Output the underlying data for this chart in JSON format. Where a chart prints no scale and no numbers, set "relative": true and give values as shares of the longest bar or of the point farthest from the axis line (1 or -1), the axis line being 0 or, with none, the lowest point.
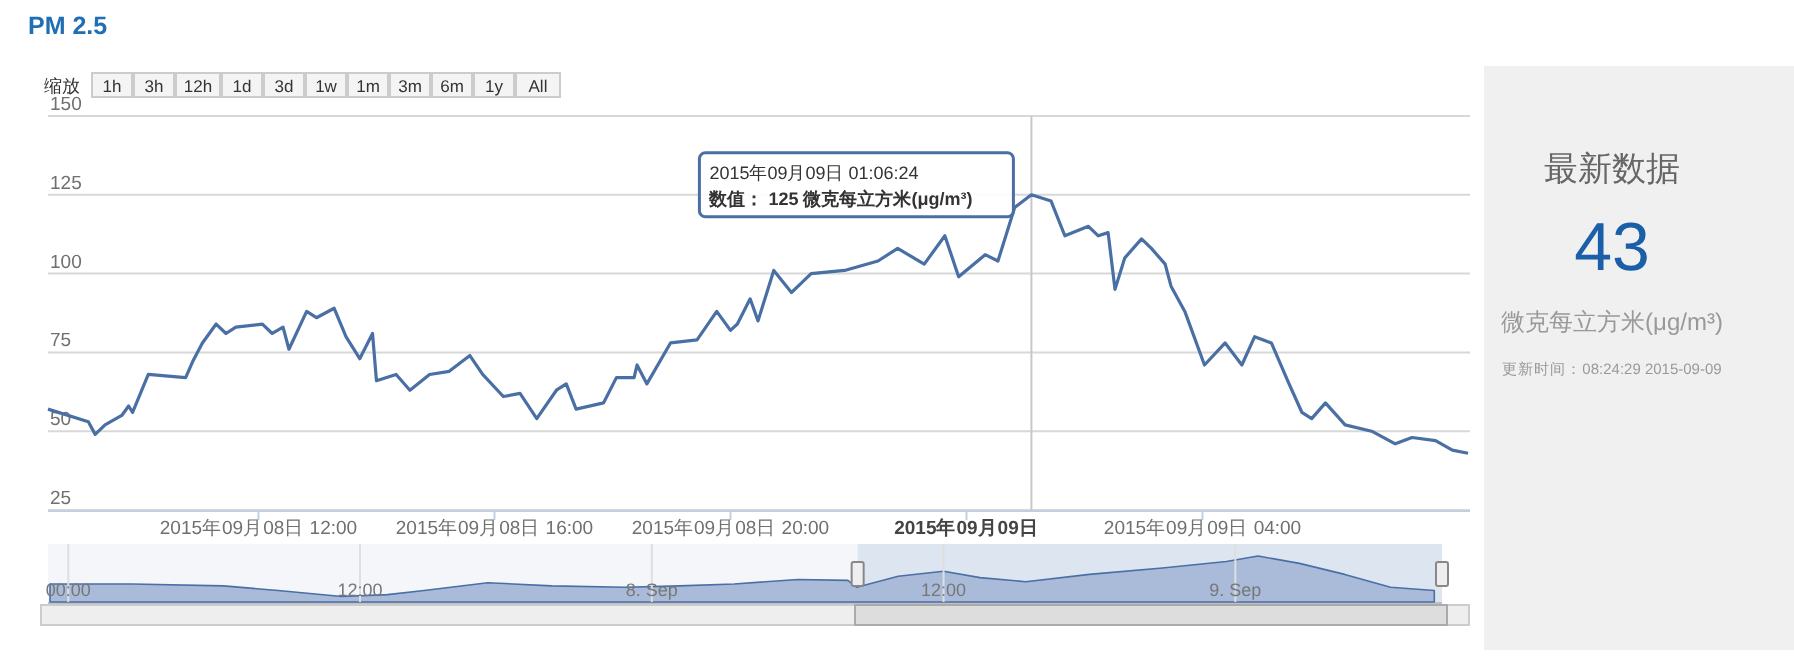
{
  "chart_data": [
    {
      "type": "line",
      "title": "PM 2.5",
      "x": [
        "2015-09-08T08:26",
        "2015-09-08T09:07",
        "2015-09-08T09:14",
        "2015-09-08T09:24",
        "2015-09-08T09:41",
        "2015-09-08T09:48",
        "2015-09-08T09:52",
        "2015-09-08T10:08",
        "2015-09-08T10:46",
        "2015-09-08T10:53",
        "2015-09-08T11:03",
        "2015-09-08T11:17",
        "2015-09-08T11:27",
        "2015-09-08T11:37",
        "2015-09-08T12:04",
        "2015-09-08T12:14",
        "2015-09-08T12:25",
        "2015-09-08T12:31",
        "2015-09-08T12:49",
        "2015-09-08T12:59",
        "2015-09-08T13:17",
        "2015-09-08T13:29",
        "2015-09-08T13:43",
        "2015-09-08T13:56",
        "2015-09-08T14:00",
        "2015-09-08T14:20",
        "2015-09-08T14:34",
        "2015-09-08T14:54",
        "2015-09-08T15:14",
        "2015-09-08T15:35",
        "2015-09-08T15:48",
        "2015-09-08T16:09",
        "2015-09-08T16:26",
        "2015-09-08T16:43",
        "2015-09-08T17:03",
        "2015-09-08T17:13",
        "2015-09-08T17:23",
        "2015-09-08T17:51",
        "2015-09-08T18:04",
        "2015-09-08T18:22",
        "2015-09-08T18:25",
        "2015-09-08T18:35",
        "2015-09-08T18:59",
        "2015-09-08T19:26",
        "2015-09-08T19:46",
        "2015-09-08T20:00",
        "2015-09-08T20:07",
        "2015-09-08T20:20",
        "2015-09-08T20:28",
        "2015-09-08T20:44",
        "2015-09-08T21:02",
        "2015-09-08T21:12",
        "2015-09-08T21:22",
        "2015-09-08T21:56",
        "2015-09-08T22:30",
        "2015-09-08T22:50",
        "2015-09-08T23:17",
        "2015-09-08T23:38",
        "2015-09-08T23:52",
        "2015-09-09T00:19",
        "2015-09-09T00:32",
        "2015-09-09T00:49",
        "2015-09-09T01:06",
        "2015-09-09T01:26",
        "2015-09-09T01:40",
        "2015-09-09T02:04",
        "2015-09-09T02:14",
        "2015-09-09T02:24",
        "2015-09-09T02:31",
        "2015-09-09T02:41",
        "2015-09-09T02:58",
        "2015-09-09T03:08",
        "2015-09-09T03:22",
        "2015-09-09T03:28",
        "2015-09-09T03:42",
        "2015-09-09T04:02",
        "2015-09-09T04:23",
        "2015-09-09T04:40",
        "2015-09-09T04:53",
        "2015-09-09T05:10",
        "2015-09-09T05:28",
        "2015-09-09T05:41",
        "2015-09-09T05:51",
        "2015-09-09T06:05",
        "2015-09-09T06:25",
        "2015-09-09T06:52",
        "2015-09-09T07:16",
        "2015-09-09T07:33",
        "2015-09-09T07:57",
        "2015-09-09T08:14",
        "2015-09-09T08:30"
      ],
      "series": [
        {
          "color": "#4a6fa5",
          "values": [
            57,
            53,
            49,
            52,
            55,
            58,
            56,
            68,
            67,
            72,
            78,
            84,
            81,
            83,
            84,
            81,
            83,
            76,
            88,
            86,
            89,
            80,
            73,
            81,
            66,
            68,
            63,
            68,
            69,
            74,
            68,
            61,
            62,
            54,
            63,
            65,
            57,
            59,
            67,
            67,
            71,
            65,
            78,
            79,
            88,
            82,
            84,
            92,
            85,
            101,
            94,
            97,
            100,
            101,
            104,
            108,
            103,
            112,
            99,
            106,
            104,
            121,
            125,
            123,
            112,
            115,
            112,
            113,
            95,
            105,
            111,
            108,
            103,
            96,
            88,
            71,
            78,
            71,
            80,
            78,
            65,
            56,
            54,
            59,
            52,
            50,
            46,
            48,
            47,
            44,
            43
          ]
        }
      ],
      "xlim": [
        "2015-09-08T08:26",
        "2015-09-09T08:32"
      ],
      "xticks": [
        {
          "value": "2015-09-08T12:00",
          "label": "2015年09月08日 12:00"
        },
        {
          "value": "2015-09-08T16:00",
          "label": "2015年09月08日 16:00"
        },
        {
          "value": "2015-09-08T20:00",
          "label": "2015年09月08日 20:00"
        },
        {
          "value": "2015-09-09T00:00",
          "label": "2015年09月09日"
        },
        {
          "value": "2015-09-09T04:00",
          "label": "2015年09月09日 04:00"
        }
      ],
      "ylim": [
        25,
        150
      ],
      "yticks": [
        25,
        50,
        75,
        100,
        125,
        150
      ],
      "grid": "y",
      "marker": "none",
      "line_style": "solid",
      "ref_lines": [
        {
          "axis": "x",
          "value": "2015-09-09T01:06",
          "color": "#c8c8c8"
        }
      ],
      "annotations": [
        "2015年09月09日 01:06:24\n数值： 125 微克每立方米(μg/m³)"
      ]
    },
    {
      "type": "other",
      "title": "缩放",
      "annotations": [
        "1h",
        "3h",
        "12h",
        "1d",
        "3d",
        "1w",
        "1m",
        "3m",
        "6m",
        "1y",
        "All"
      ]
    },
    {
      "type": "area",
      "relative": true,
      "x": [
        "2015-09-06T23:15",
        "2015-09-07T02:38",
        "2015-09-07T06:23",
        "2015-09-07T08:38",
        "2015-09-07T11:15",
        "2015-09-07T13:08",
        "2015-09-07T14:38",
        "2015-09-07T17:15",
        "2015-09-07T19:53",
        "2015-09-07T22:53",
        "2015-09-08T01:08",
        "2015-09-08T03:23",
        "2015-09-08T06:00",
        "2015-09-08T08:04",
        "2015-09-08T08:26",
        "2015-09-08T10:08",
        "2015-09-08T12:00",
        "2015-09-08T13:30",
        "2015-09-08T15:23",
        "2015-09-08T18:00",
        "2015-09-08T21:00",
        "2015-09-08T23:38",
        "2015-09-09T00:56",
        "2015-09-09T02:38",
        "2015-09-09T04:30",
        "2015-09-09T06:23",
        "2015-09-09T08:11"
      ],
      "series": [
        {
          "color": "#a9bbd8",
          "values": [
            0.39,
            0.39,
            0.35,
            0.25,
            0.12,
            0.16,
            0.25,
            0.42,
            0.35,
            0.32,
            0.35,
            0.39,
            0.49,
            0.47,
            0.32,
            0.56,
            0.67,
            0.53,
            0.44,
            0.6,
            0.74,
            0.88,
            1,
            0.84,
            0.6,
            0.32,
            0.25
          ]
        }
      ],
      "xlim": [
        "2015-09-06T23:10",
        "2015-09-09T08:30"
      ],
      "xticks": [
        {
          "value": "2015-09-07T00:00",
          "label": "00:00"
        },
        {
          "value": "2015-09-07T12:00",
          "label": "12:00"
        },
        {
          "value": "2015-09-08T00:00",
          "label": "8. Sep"
        },
        {
          "value": "2015-09-08T12:00",
          "label": "12:00"
        },
        {
          "value": "2015-09-09T00:00",
          "label": "9. Sep"
        }
      ],
      "grid": "x",
      "bands": [
        {
          "axis": "x",
          "from": "2015-09-08T08:28",
          "to": "2015-09-09T08:30",
          "color": "#dde5f0"
        }
      ]
    },
    {
      "type": "other",
      "title": "最新数据",
      "annotations": [
        "43",
        "微克每立方米(μg/m³)",
        "更新时间：08:24:29 2015-09-09"
      ]
    }
  ]
}
